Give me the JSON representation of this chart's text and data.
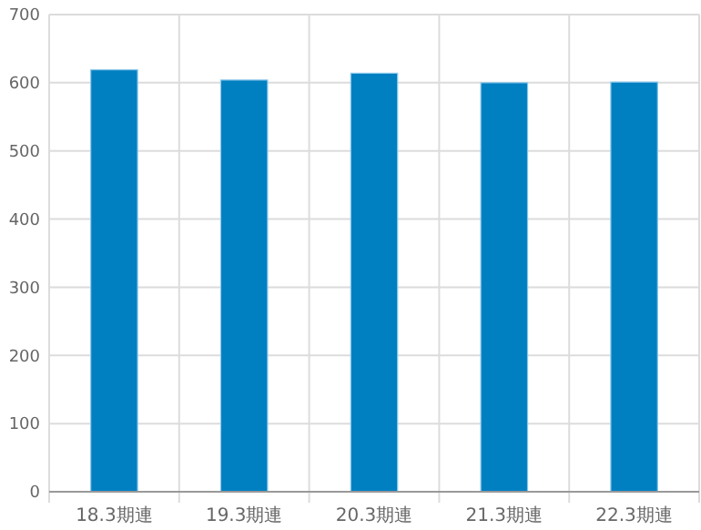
{
  "chart_data": {
    "type": "bar",
    "categories": [
      "18.3期連",
      "19.3期連",
      "20.3期連",
      "21.3期連",
      "22.3期連"
    ],
    "values": [
      619,
      604,
      614,
      600,
      601
    ],
    "color": "#007fc1",
    "ylim": [
      0,
      700
    ],
    "yticks": [
      0,
      100,
      200,
      300,
      400,
      500,
      600,
      700
    ],
    "grid": true
  }
}
